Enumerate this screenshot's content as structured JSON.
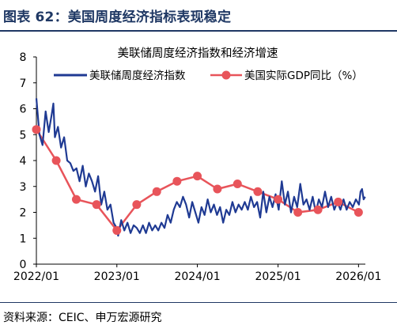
{
  "figure": {
    "title": "图表 62：美国周度经济指标表现稳定",
    "source": "资料来源：CEIC、申万宏源研究"
  },
  "colors": {
    "title": "#1f3864",
    "series_wei": "#1f3a93",
    "series_gdp": "#e8545a"
  },
  "chart_data": {
    "type": "line",
    "title": "美联储周度经济指数和经济增速",
    "xlabel": "",
    "ylabel": "",
    "ylim": [
      0,
      8
    ],
    "yticks": [
      "0",
      "1",
      "2",
      "3",
      "4",
      "5",
      "6",
      "7",
      "8"
    ],
    "xlim": [
      "2022-01-01",
      "2026-02-01"
    ],
    "xticks": [
      {
        "date": "2022-01-01",
        "label": "2022/01"
      },
      {
        "date": "2023-01-01",
        "label": "2023/01"
      },
      {
        "date": "2024-01-01",
        "label": "2024/01"
      },
      {
        "date": "2025-01-01",
        "label": "2025/01"
      },
      {
        "date": "2026-01-01",
        "label": "2026/01"
      }
    ],
    "grid": false,
    "legend": "top",
    "series": [
      {
        "name": "美联储周度经济指数",
        "style": "line",
        "points": [
          [
            "2022-01-01",
            6.4
          ],
          [
            "2022-01-15",
            5.0
          ],
          [
            "2022-01-29",
            4.6
          ],
          [
            "2022-02-12",
            5.9
          ],
          [
            "2022-02-26",
            5.1
          ],
          [
            "2022-03-12",
            5.8
          ],
          [
            "2022-03-19",
            6.2
          ],
          [
            "2022-03-26",
            4.9
          ],
          [
            "2022-04-09",
            5.3
          ],
          [
            "2022-04-23",
            4.5
          ],
          [
            "2022-05-07",
            4.9
          ],
          [
            "2022-05-21",
            4.0
          ],
          [
            "2022-06-04",
            3.9
          ],
          [
            "2022-06-18",
            3.6
          ],
          [
            "2022-07-02",
            3.7
          ],
          [
            "2022-07-16",
            3.2
          ],
          [
            "2022-07-30",
            3.8
          ],
          [
            "2022-08-13",
            3.0
          ],
          [
            "2022-08-27",
            3.5
          ],
          [
            "2022-09-10",
            3.2
          ],
          [
            "2022-09-24",
            2.8
          ],
          [
            "2022-10-08",
            3.4
          ],
          [
            "2022-10-22",
            2.3
          ],
          [
            "2022-11-05",
            2.8
          ],
          [
            "2022-11-19",
            2.1
          ],
          [
            "2022-12-03",
            2.3
          ],
          [
            "2022-12-17",
            1.6
          ],
          [
            "2022-12-31",
            1.4
          ],
          [
            "2023-01-07",
            1.1
          ],
          [
            "2023-01-21",
            1.7
          ],
          [
            "2023-02-04",
            1.3
          ],
          [
            "2023-02-18",
            1.6
          ],
          [
            "2023-03-04",
            1.2
          ],
          [
            "2023-03-18",
            1.5
          ],
          [
            "2023-04-01",
            1.4
          ],
          [
            "2023-04-15",
            1.2
          ],
          [
            "2023-04-29",
            1.5
          ],
          [
            "2023-05-13",
            1.2
          ],
          [
            "2023-05-27",
            1.6
          ],
          [
            "2023-06-10",
            1.3
          ],
          [
            "2023-06-24",
            1.5
          ],
          [
            "2023-07-08",
            1.3
          ],
          [
            "2023-07-22",
            1.6
          ],
          [
            "2023-08-05",
            1.4
          ],
          [
            "2023-08-19",
            1.9
          ],
          [
            "2023-09-02",
            1.6
          ],
          [
            "2023-09-16",
            2.1
          ],
          [
            "2023-09-30",
            2.4
          ],
          [
            "2023-10-14",
            2.2
          ],
          [
            "2023-10-28",
            2.6
          ],
          [
            "2023-11-11",
            2.3
          ],
          [
            "2023-11-25",
            1.8
          ],
          [
            "2023-12-09",
            2.4
          ],
          [
            "2023-12-23",
            2.0
          ],
          [
            "2024-01-06",
            1.6
          ],
          [
            "2024-01-20",
            2.2
          ],
          [
            "2024-02-03",
            1.9
          ],
          [
            "2024-02-17",
            2.5
          ],
          [
            "2024-03-02",
            2.0
          ],
          [
            "2024-03-16",
            2.3
          ],
          [
            "2024-03-30",
            1.9
          ],
          [
            "2024-04-13",
            2.2
          ],
          [
            "2024-04-27",
            1.6
          ],
          [
            "2024-05-11",
            2.1
          ],
          [
            "2024-05-25",
            1.9
          ],
          [
            "2024-06-08",
            2.4
          ],
          [
            "2024-06-22",
            2.0
          ],
          [
            "2024-07-06",
            2.3
          ],
          [
            "2024-07-20",
            2.1
          ],
          [
            "2024-08-03",
            2.4
          ],
          [
            "2024-08-17",
            2.1
          ],
          [
            "2024-08-31",
            2.6
          ],
          [
            "2024-09-14",
            2.2
          ],
          [
            "2024-09-28",
            2.4
          ],
          [
            "2024-10-12",
            1.8
          ],
          [
            "2024-10-26",
            2.8
          ],
          [
            "2024-11-09",
            2.0
          ],
          [
            "2024-11-23",
            2.6
          ],
          [
            "2024-12-07",
            2.2
          ],
          [
            "2024-12-21",
            2.7
          ],
          [
            "2025-01-04",
            2.1
          ],
          [
            "2025-01-18",
            3.2
          ],
          [
            "2025-02-01",
            2.3
          ],
          [
            "2025-02-15",
            2.8
          ],
          [
            "2025-03-01",
            2.0
          ],
          [
            "2025-03-15",
            2.6
          ],
          [
            "2025-03-29",
            2.2
          ],
          [
            "2025-04-12",
            3.1
          ],
          [
            "2025-04-26",
            2.3
          ],
          [
            "2025-05-10",
            2.5
          ],
          [
            "2025-05-24",
            2.1
          ],
          [
            "2025-06-07",
            2.6
          ],
          [
            "2025-06-21",
            2.0
          ],
          [
            "2025-07-05",
            2.5
          ],
          [
            "2025-07-19",
            2.2
          ],
          [
            "2025-08-02",
            2.8
          ],
          [
            "2025-08-16",
            2.2
          ],
          [
            "2025-08-30",
            2.6
          ],
          [
            "2025-09-13",
            2.1
          ],
          [
            "2025-09-27",
            2.4
          ],
          [
            "2025-10-11",
            2.1
          ],
          [
            "2025-10-25",
            2.5
          ],
          [
            "2025-11-08",
            2.1
          ],
          [
            "2025-11-22",
            2.4
          ],
          [
            "2025-12-06",
            2.2
          ],
          [
            "2025-12-20",
            2.5
          ],
          [
            "2026-01-03",
            2.3
          ],
          [
            "2026-01-10",
            2.8
          ],
          [
            "2026-01-17",
            2.9
          ],
          [
            "2026-01-24",
            2.5
          ],
          [
            "2026-01-31",
            2.6
          ]
        ]
      },
      {
        "name": "美国实际GDP同比（%）",
        "style": "line-marker",
        "points": [
          [
            "2022-01-01",
            5.2
          ],
          [
            "2022-04-01",
            4.0
          ],
          [
            "2022-07-01",
            2.5
          ],
          [
            "2022-10-01",
            2.3
          ],
          [
            "2023-01-01",
            1.3
          ],
          [
            "2023-04-01",
            2.3
          ],
          [
            "2023-07-01",
            2.8
          ],
          [
            "2023-10-01",
            3.2
          ],
          [
            "2024-01-01",
            3.4
          ],
          [
            "2024-04-01",
            2.9
          ],
          [
            "2024-07-01",
            3.1
          ],
          [
            "2024-10-01",
            2.8
          ],
          [
            "2025-01-01",
            2.5
          ],
          [
            "2025-04-01",
            2.0
          ],
          [
            "2025-07-01",
            2.1
          ],
          [
            "2025-10-01",
            2.4
          ],
          [
            "2026-01-01",
            2.0
          ]
        ]
      }
    ]
  }
}
